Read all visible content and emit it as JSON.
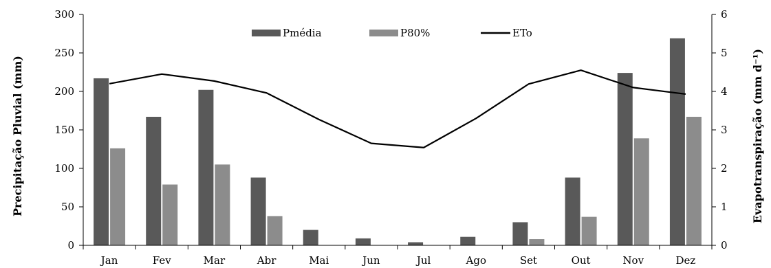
{
  "chart_data": {
    "type": "bar",
    "categories": [
      "Jan",
      "Fev",
      "Mar",
      "Abr",
      "Mai",
      "Jun",
      "Jul",
      "Ago",
      "Set",
      "Out",
      "Nov",
      "Dez"
    ],
    "series": [
      {
        "name": "Pmédia",
        "kind": "bar",
        "axis": "left",
        "color": "#595959",
        "values": [
          217,
          167,
          202,
          88,
          20,
          9,
          4,
          11,
          30,
          88,
          224,
          269
        ]
      },
      {
        "name": "P80%",
        "kind": "bar",
        "axis": "left",
        "color": "#8c8c8c",
        "values": [
          126,
          79,
          105,
          38,
          0,
          0,
          0,
          0,
          8,
          37,
          139,
          167
        ]
      },
      {
        "name": "ETo",
        "kind": "line",
        "axis": "right",
        "color": "#000000",
        "values": [
          4.2,
          4.45,
          4.27,
          3.96,
          3.27,
          2.65,
          2.54,
          3.3,
          4.19,
          4.55,
          4.1,
          3.93
        ]
      }
    ],
    "ylabel": "Precipitação Pluvial (mm)",
    "y2label": "Evapotranspiração (mm d⁻¹)",
    "ylim": [
      0,
      300
    ],
    "y2lim": [
      0,
      6
    ],
    "yticks": [
      "0",
      "50",
      "100",
      "150",
      "200",
      "250",
      "300"
    ],
    "y2ticks": [
      "0",
      "1",
      "2",
      "3",
      "4",
      "5",
      "6"
    ],
    "legend_position": "top-center",
    "grid": false
  }
}
